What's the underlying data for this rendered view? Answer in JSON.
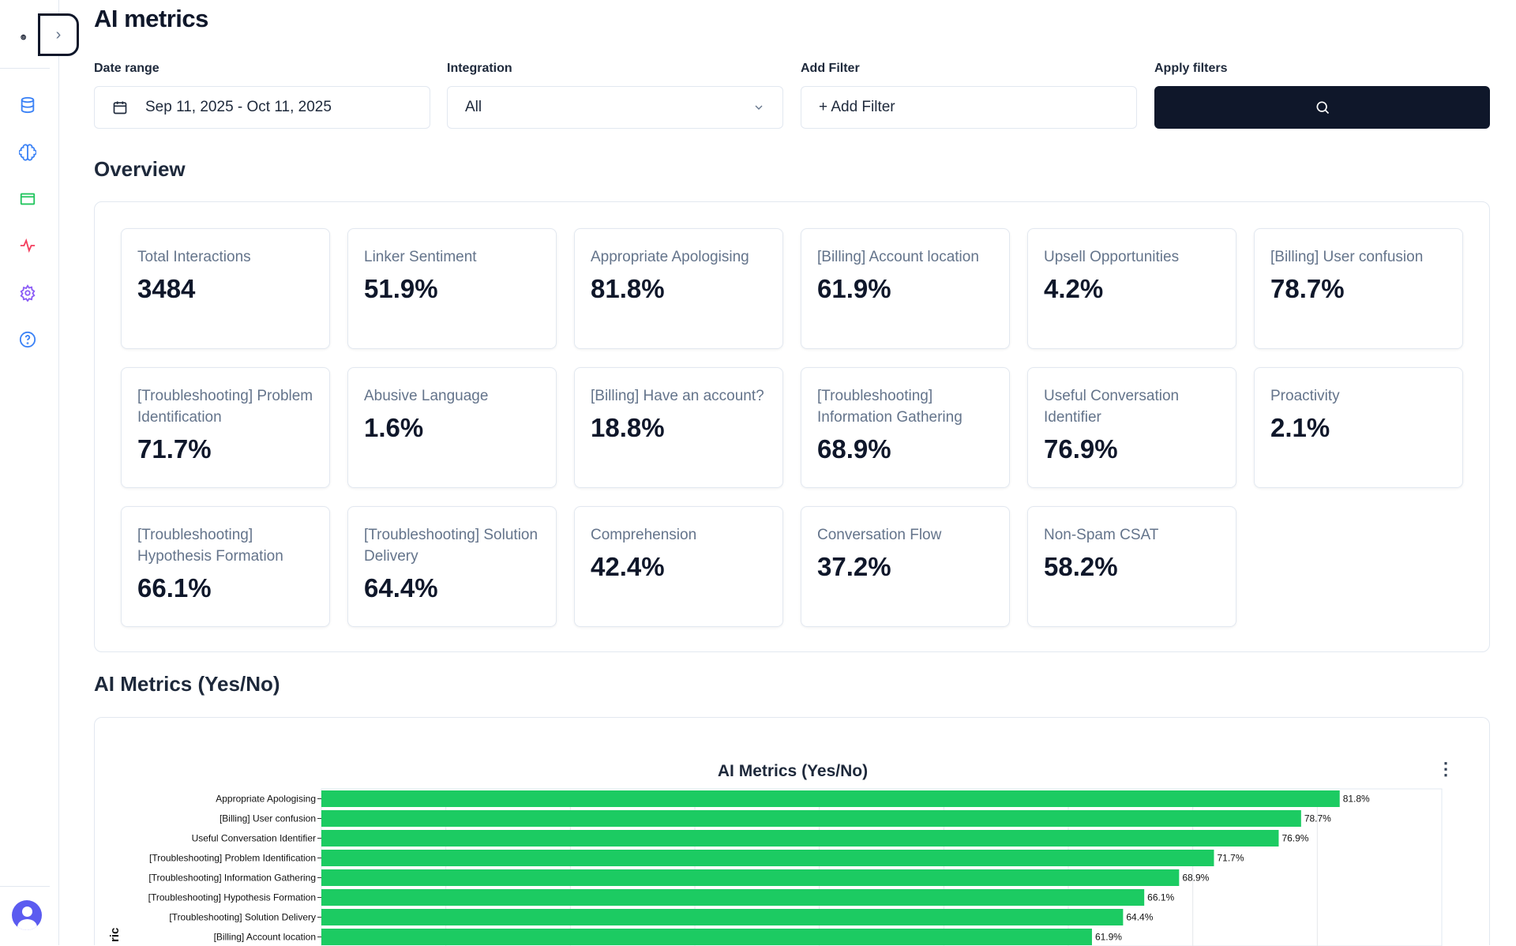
{
  "sidebar": {
    "logo": "๏",
    "toggle_icon": "chevron-right-icon",
    "items": [
      {
        "icon": "database-icon",
        "color": "#3b82f6"
      },
      {
        "icon": "brain-icon",
        "color": "#3b82f6"
      },
      {
        "icon": "browser-window-icon",
        "color": "#22c55e"
      },
      {
        "icon": "activity-icon",
        "color": "#f43f5e"
      },
      {
        "icon": "gear-icon",
        "color": "#8b5cf6"
      },
      {
        "icon": "help-circle-icon",
        "color": "#3b82f6"
      }
    ],
    "avatar_color": "#5b5bf0"
  },
  "header": {
    "title": "AI metrics"
  },
  "filters": {
    "date_range": {
      "label": "Date range",
      "value": "Sep 11, 2025 - Oct 11, 2025"
    },
    "integration": {
      "label": "Integration",
      "value": "All"
    },
    "add_filter": {
      "label": "Add Filter",
      "button": "+ Add Filter"
    },
    "apply": {
      "label": "Apply filters"
    }
  },
  "overview": {
    "title": "Overview",
    "cards": [
      {
        "title": "Total Interactions",
        "value": "3484"
      },
      {
        "title": "Linker Sentiment",
        "value": "51.9%"
      },
      {
        "title": "Appropriate Apologising",
        "value": "81.8%"
      },
      {
        "title": "[Billing] Account location",
        "value": "61.9%"
      },
      {
        "title": "Upsell Opportunities",
        "value": "4.2%"
      },
      {
        "title": "[Billing] User confusion",
        "value": "78.7%"
      },
      {
        "title": "[Troubleshooting] Problem Identification",
        "value": "71.7%"
      },
      {
        "title": "Abusive Language",
        "value": "1.6%"
      },
      {
        "title": "[Billing] Have an account?",
        "value": "18.8%"
      },
      {
        "title": "[Troubleshooting] Information Gathering",
        "value": "68.9%"
      },
      {
        "title": "Useful Conversation Identifier",
        "value": "76.9%"
      },
      {
        "title": "Proactivity",
        "value": "2.1%"
      },
      {
        "title": "[Troubleshooting] Hypothesis Formation",
        "value": "66.1%"
      },
      {
        "title": "[Troubleshooting] Solution Delivery",
        "value": "64.4%"
      },
      {
        "title": "Comprehension",
        "value": "42.4%"
      },
      {
        "title": "Conversation Flow",
        "value": "37.2%"
      },
      {
        "title": "Non-Spam CSAT",
        "value": "58.2%"
      }
    ]
  },
  "chart_section": {
    "title": "AI Metrics (Yes/No)",
    "menu_icon": "kebab-menu-icon"
  },
  "chart_data": {
    "type": "bar",
    "orientation": "horizontal",
    "title": "AI Metrics (Yes/No)",
    "ylabel": "ric",
    "categories": [
      "Appropriate Apologising",
      "[Billing] User confusion",
      "Useful Conversation Identifier",
      "[Troubleshooting] Problem Identification",
      "[Troubleshooting] Information Gathering",
      "[Troubleshooting] Hypothesis Formation",
      "[Troubleshooting] Solution Delivery",
      "[Billing] Account location"
    ],
    "values": [
      81.8,
      78.7,
      76.9,
      71.7,
      68.9,
      66.1,
      64.4,
      61.9
    ],
    "labels": [
      "81.8%",
      "78.7%",
      "76.9%",
      "71.7%",
      "68.9%",
      "66.1%",
      "64.4%",
      "61.9%"
    ],
    "xlim": [
      0,
      90
    ],
    "grid": true,
    "grid_step": 10,
    "color": "#1ccb62"
  }
}
